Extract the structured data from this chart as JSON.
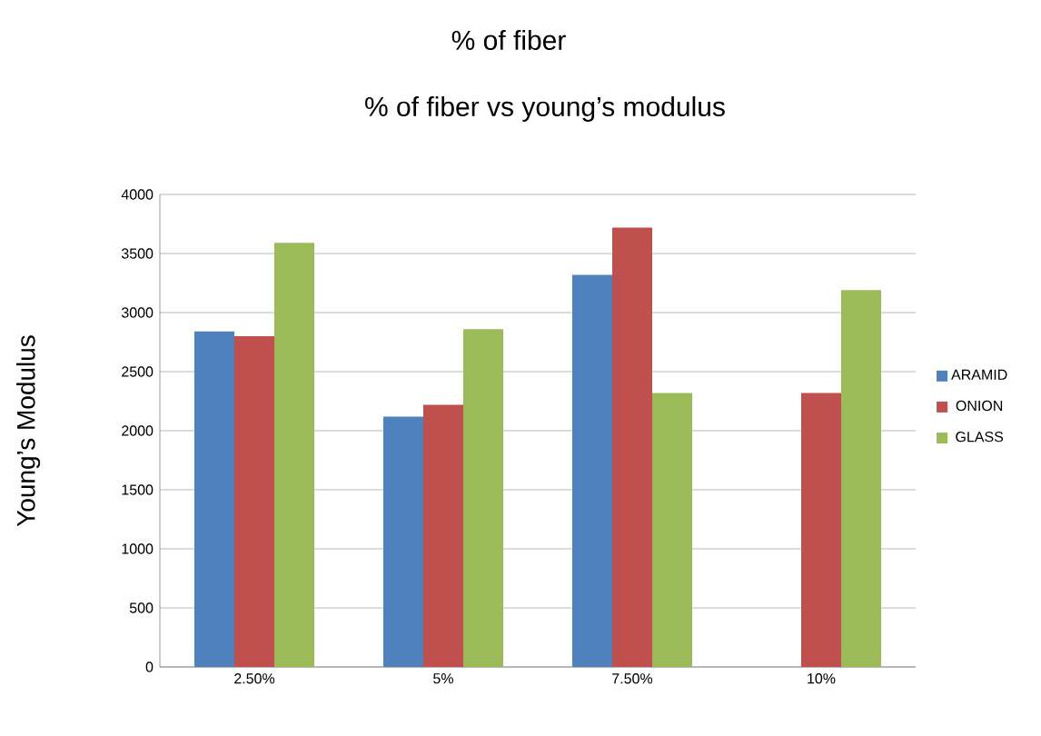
{
  "chart_data": {
    "type": "bar",
    "title": "% of fiber",
    "subtitle": "% of fiber vs young’s modulus",
    "ylabel": "Young’s Modulus",
    "categories": [
      "2.50%",
      "5%",
      "7.50%",
      "10%"
    ],
    "series": [
      {
        "name": "ARAMID",
        "color": "#4f81bd",
        "values": [
          2840,
          2120,
          3320,
          null
        ]
      },
      {
        "name": "ONION",
        "color": "#c0504d",
        "values": [
          2800,
          2220,
          3720,
          2320
        ]
      },
      {
        "name": "GLASS",
        "color": "#9bbb59",
        "values": [
          3590,
          2860,
          2320,
          3190
        ]
      }
    ],
    "ylim": [
      0,
      4000
    ],
    "yticks": [
      0,
      500,
      1000,
      1500,
      2000,
      2500,
      3000,
      3500,
      4000
    ],
    "grid": "y",
    "legend": "right"
  }
}
